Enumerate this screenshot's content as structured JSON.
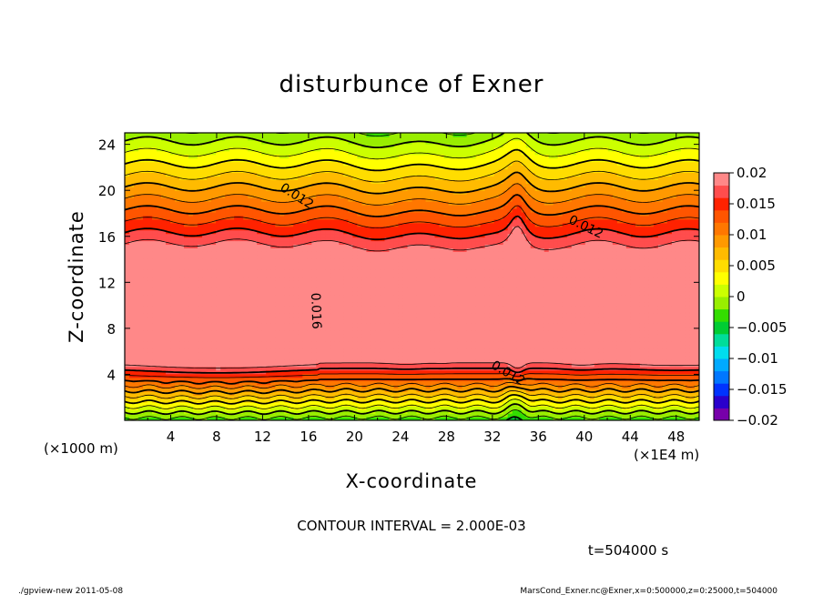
{
  "chart_data": {
    "type": "heatmap",
    "title": "disturbunce of Exner",
    "xlabel": "X-coordinate",
    "ylabel": "Z-coordinate",
    "x_unit": "(×1E4 m)",
    "y_unit": "(×1000 m)",
    "xlim": [
      0,
      50
    ],
    "ylim": [
      0,
      25
    ],
    "x_ticks": [
      4,
      8,
      12,
      16,
      20,
      24,
      28,
      32,
      36,
      40,
      44,
      48
    ],
    "y_ticks": [
      4,
      8,
      12,
      16,
      20,
      24
    ],
    "x_tick_labels": [
      "4",
      "8",
      "12",
      "16",
      "20",
      "24",
      "28",
      "32",
      "36",
      "40",
      "44",
      "48"
    ],
    "y_tick_labels": [
      "4",
      "8",
      "12",
      "16",
      "20",
      "24"
    ],
    "colorbar": {
      "levels": [
        -0.02,
        -0.015,
        -0.01,
        -0.005,
        0,
        0.005,
        0.01,
        0.015,
        0.02
      ],
      "labels": [
        "−0.02",
        "−0.015",
        "−0.01",
        "−0.005",
        "0",
        "0.005",
        "0.01",
        "0.015",
        "0.02"
      ],
      "colors": [
        "#7700aa",
        "#2a00cc",
        "#0033ff",
        "#0077ff",
        "#00aaff",
        "#00ddee",
        "#00dd99",
        "#00cc33",
        "#33dd00",
        "#99ee00",
        "#ccff00",
        "#ffff00",
        "#ffdd00",
        "#ffbb00",
        "#ff9900",
        "#ff7700",
        "#ff5500",
        "#ff2200",
        "#ff4d4d",
        "#ff8888"
      ]
    },
    "contour_labels": [
      {
        "text": "0.012",
        "x": 14.8,
        "z": 19.2
      },
      {
        "text": "0.012",
        "x": 40.0,
        "z": 16.5
      },
      {
        "text": "0.016",
        "x": 16.3,
        "z": 9.5
      },
      {
        "text": "0.012",
        "x": 33.2,
        "z": 3.8
      }
    ],
    "annotations": {
      "contour_interval": "CONTOUR INTERVAL = 2.000E-03",
      "time": "t=504000 s"
    }
  },
  "footer": {
    "left": "./gpview-new   2011-05-08",
    "right": "MarsCond_Exner.nc@Exner,x=0:500000,z=0:25000,t=504000"
  }
}
